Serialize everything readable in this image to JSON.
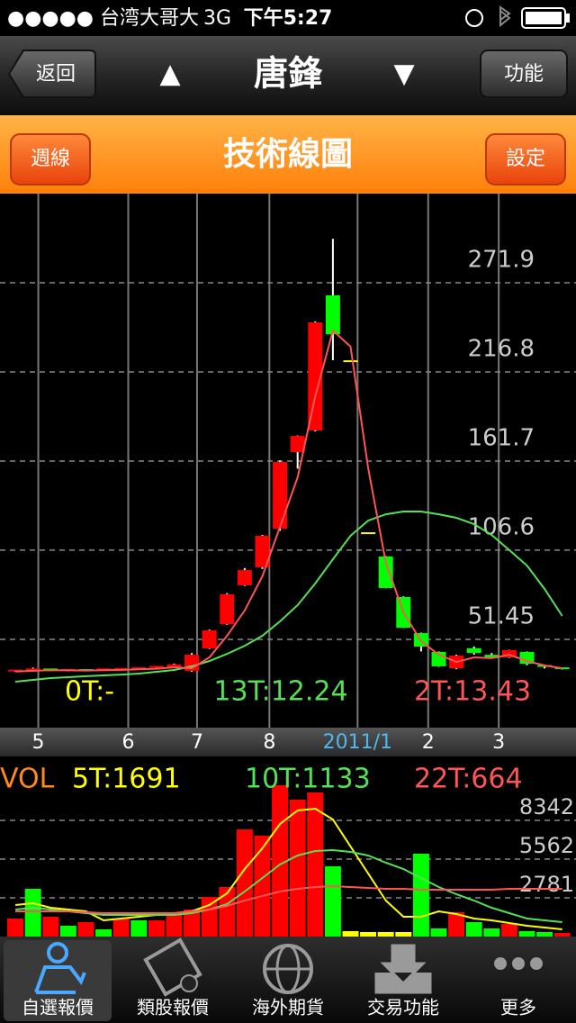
{
  "status_bar": {
    "carrier": "●●●●● 台湾大哥大",
    "network": "3G",
    "time": "下午5:27"
  },
  "nav_bar": {
    "back": "返回",
    "prev": "▲",
    "title": "唐鋒",
    "next": "▼",
    "menu": "功能"
  },
  "header": {
    "left_button": "週線",
    "title": "技術線圖",
    "right_button": "設定"
  },
  "chart_data": [
    {
      "type": "candlestick",
      "categories": [
        null,
        null,
        null,
        null,
        null,
        null,
        null,
        null,
        null,
        null,
        null,
        null,
        null,
        null,
        null,
        null,
        null,
        null,
        null,
        null,
        null,
        null,
        null,
        null,
        null,
        null,
        null,
        null,
        null,
        null,
        null,
        null
      ],
      "open": [
        31.8,
        32.2,
        32.9,
        32.0,
        32.5,
        32.3,
        32.9,
        33.2,
        33.6,
        34.5,
        32.0,
        45.9,
        60.9,
        84.9,
        96.0,
        119.9,
        167.2,
        180.6,
        264.1,
        223.4,
        117.1,
        102.7,
        77.6,
        55.3,
        43.7,
        33.6,
        46.0,
        41.9,
        40.3,
        43.7,
        35.0,
        33.6
      ],
      "high": [
        32.6,
        34.0,
        33.3,
        32.8,
        33.0,
        33.2,
        33.5,
        34.0,
        35.0,
        36.5,
        43.0,
        57.5,
        80.0,
        95.5,
        116.0,
        162.0,
        177.5,
        248.0,
        299.1,
        223.8,
        117.3,
        103.0,
        78.0,
        55.6,
        44.0,
        42.0,
        47.0,
        43.0,
        45.0,
        44.0,
        35.5,
        34.0
      ],
      "low": [
        31.4,
        31.9,
        31.8,
        31.7,
        32.0,
        32.0,
        32.5,
        32.9,
        33.2,
        34.0,
        31.5,
        45.5,
        60.5,
        84.5,
        95.0,
        118.5,
        157.0,
        180.0,
        224.0,
        223.0,
        116.9,
        83.0,
        58.5,
        44.0,
        34.5,
        33.0,
        42.0,
        39.5,
        40.0,
        35.5,
        33.5,
        32.8
      ],
      "close": [
        32.2,
        32.9,
        32.0,
        32.5,
        32.3,
        32.9,
        33.2,
        33.6,
        34.5,
        36.0,
        42.0,
        57.0,
        79.3,
        94.3,
        115.5,
        161.1,
        177.2,
        247.4,
        240.1,
        223.4,
        117.1,
        83.2,
        58.7,
        47.0,
        34.8,
        41.4,
        43.1,
        39.8,
        44.8,
        36.4,
        34.0,
        33.1
      ],
      "up_color": "#ff0000",
      "down_color": "#00ff00",
      "flat_color": "#ffff00",
      "wick_color": "#ffffff",
      "series": [
        {
          "name": "0T:-",
          "color": "#ffff00",
          "values": [
            null,
            null,
            null,
            null,
            null,
            null,
            null,
            null,
            null,
            null,
            null,
            null,
            null,
            null,
            null,
            null,
            null,
            null,
            null,
            null,
            null,
            null,
            null,
            null,
            null,
            null,
            null,
            null,
            null,
            null,
            null,
            null
          ]
        },
        {
          "name": "13T:12.24",
          "color": "#55e055",
          "values": [
            25.3,
            26.4,
            27.5,
            28.1,
            28.7,
            29.2,
            29.7,
            30.3,
            31.4,
            32.5,
            34.8,
            38.1,
            42.5,
            47.5,
            53.7,
            62.6,
            72.6,
            86.0,
            101.0,
            115.5,
            124.9,
            128.8,
            130.5,
            130.5,
            128.8,
            126.6,
            122.7,
            116.0,
            106.6,
            97.1,
            82.6,
            65.9
          ]
        },
        {
          "name": "2T:13.43",
          "color": "#ff5555",
          "values": [
            31.5,
            32.0,
            32.4,
            32.3,
            32.2,
            32.4,
            32.6,
            32.9,
            33.3,
            34.2,
            33.6,
            40.3,
            53.7,
            69.3,
            90.4,
            121.0,
            151.6,
            201.7,
            242.4,
            232.4,
            157.2,
            98.8,
            68.1,
            50.3,
            42.0,
            37.5,
            40.3,
            39.8,
            42.0,
            38.1,
            35.3,
            33.6
          ]
        }
      ],
      "xlim": [
        -0.87,
        31.78
      ],
      "ylim": [
        -3.1,
        327
      ],
      "yticks": [
        51.45,
        106.6,
        161.7,
        216.8,
        271.9
      ],
      "xticks": [
        {
          "value": 1.3,
          "label": "5"
        },
        {
          "value": 6.4,
          "label": "6"
        },
        {
          "value": 10.3,
          "label": "7"
        },
        {
          "value": 14.4,
          "label": "8"
        },
        {
          "value": 19.4,
          "label": "2011/1"
        },
        {
          "value": 23.4,
          "label": "2"
        },
        {
          "value": 27.4,
          "label": "3"
        }
      ],
      "highlight_xtick": 4,
      "highlight_color": "#4fb8f0",
      "grid": true
    },
    {
      "type": "bar",
      "label": "VOL",
      "categories": [
        null,
        null,
        null,
        null,
        null,
        null,
        null,
        null,
        null,
        null,
        null,
        null,
        null,
        null,
        null,
        null,
        null,
        null,
        null,
        null,
        null,
        null,
        null,
        null,
        null,
        null,
        null,
        null,
        null,
        null,
        null,
        null
      ],
      "values": [
        1293,
        3428,
        1423,
        776,
        1035,
        517,
        1293,
        1164,
        1164,
        1552,
        1940,
        2846,
        3557,
        7696,
        7244,
        10865,
        9831,
        10348,
        5045,
        388,
        323,
        323,
        323,
        5950,
        582,
        1746,
        1035,
        582,
        905,
        388,
        323,
        259
      ],
      "colors": [
        "#ff0000",
        "#00ff00",
        "#ff0000",
        "#00ff00",
        "#ff0000",
        "#00ff00",
        "#ff0000",
        "#00ff00",
        "#ff0000",
        "#ff0000",
        "#ff0000",
        "#ff0000",
        "#ff0000",
        "#ff0000",
        "#ff0000",
        "#ff0000",
        "#ff0000",
        "#ff0000",
        "#00ff00",
        "#ffff00",
        "#ffff00",
        "#ffff00",
        "#ffff00",
        "#00ff00",
        "#00ff00",
        "#ff0000",
        "#00ff00",
        "#00ff00",
        "#ff0000",
        "#00ff00",
        "#00ff00",
        "#ff0000"
      ],
      "series": [
        {
          "name": "5T:1691",
          "color": "#ffff00",
          "values": [
            2263,
            2393,
            2069,
            1940,
            1811,
            1164,
            1293,
            1423,
            1552,
            1681,
            1811,
            2263,
            3104,
            4850,
            6338,
            8084,
            9054,
            9183,
            8407,
            6467,
            4527,
            2587,
            1423,
            1423,
            1811,
            1617,
            1293,
            1164,
            970,
            776,
            647,
            517
          ]
        },
        {
          "name": "10T:1133",
          "color": "#55e055",
          "values": [
            1940,
            2069,
            1940,
            1811,
            1681,
            1552,
            1552,
            1552,
            1552,
            1552,
            1681,
            1940,
            2328,
            3234,
            4204,
            5174,
            5820,
            6144,
            6208,
            6079,
            5820,
            5303,
            4850,
            4204,
            3557,
            3039,
            2587,
            2069,
            1681,
            1293,
            1164,
            1035
          ]
        },
        {
          "name": "22T:664",
          "color": "#ff5555",
          "values": [
            1811,
            1811,
            1811,
            1811,
            1747,
            1681,
            1681,
            1681,
            1681,
            1681,
            1811,
            1940,
            2199,
            2587,
            2910,
            3234,
            3428,
            3557,
            3622,
            3557,
            3493,
            3428,
            3428,
            3363,
            3363,
            3363,
            3363,
            3363,
            3428,
            3428,
            3428,
            3428
          ]
        }
      ],
      "xlim": [
        -0.87,
        31.78
      ],
      "ylim": [
        0,
        11124
      ],
      "yticks": [
        2781,
        5562,
        8342
      ],
      "grid": true
    }
  ],
  "tab_bar": {
    "tabs": [
      "自選報價",
      "類股報價",
      "海外期貨",
      "交易功能",
      "更多"
    ],
    "selected": 0
  }
}
